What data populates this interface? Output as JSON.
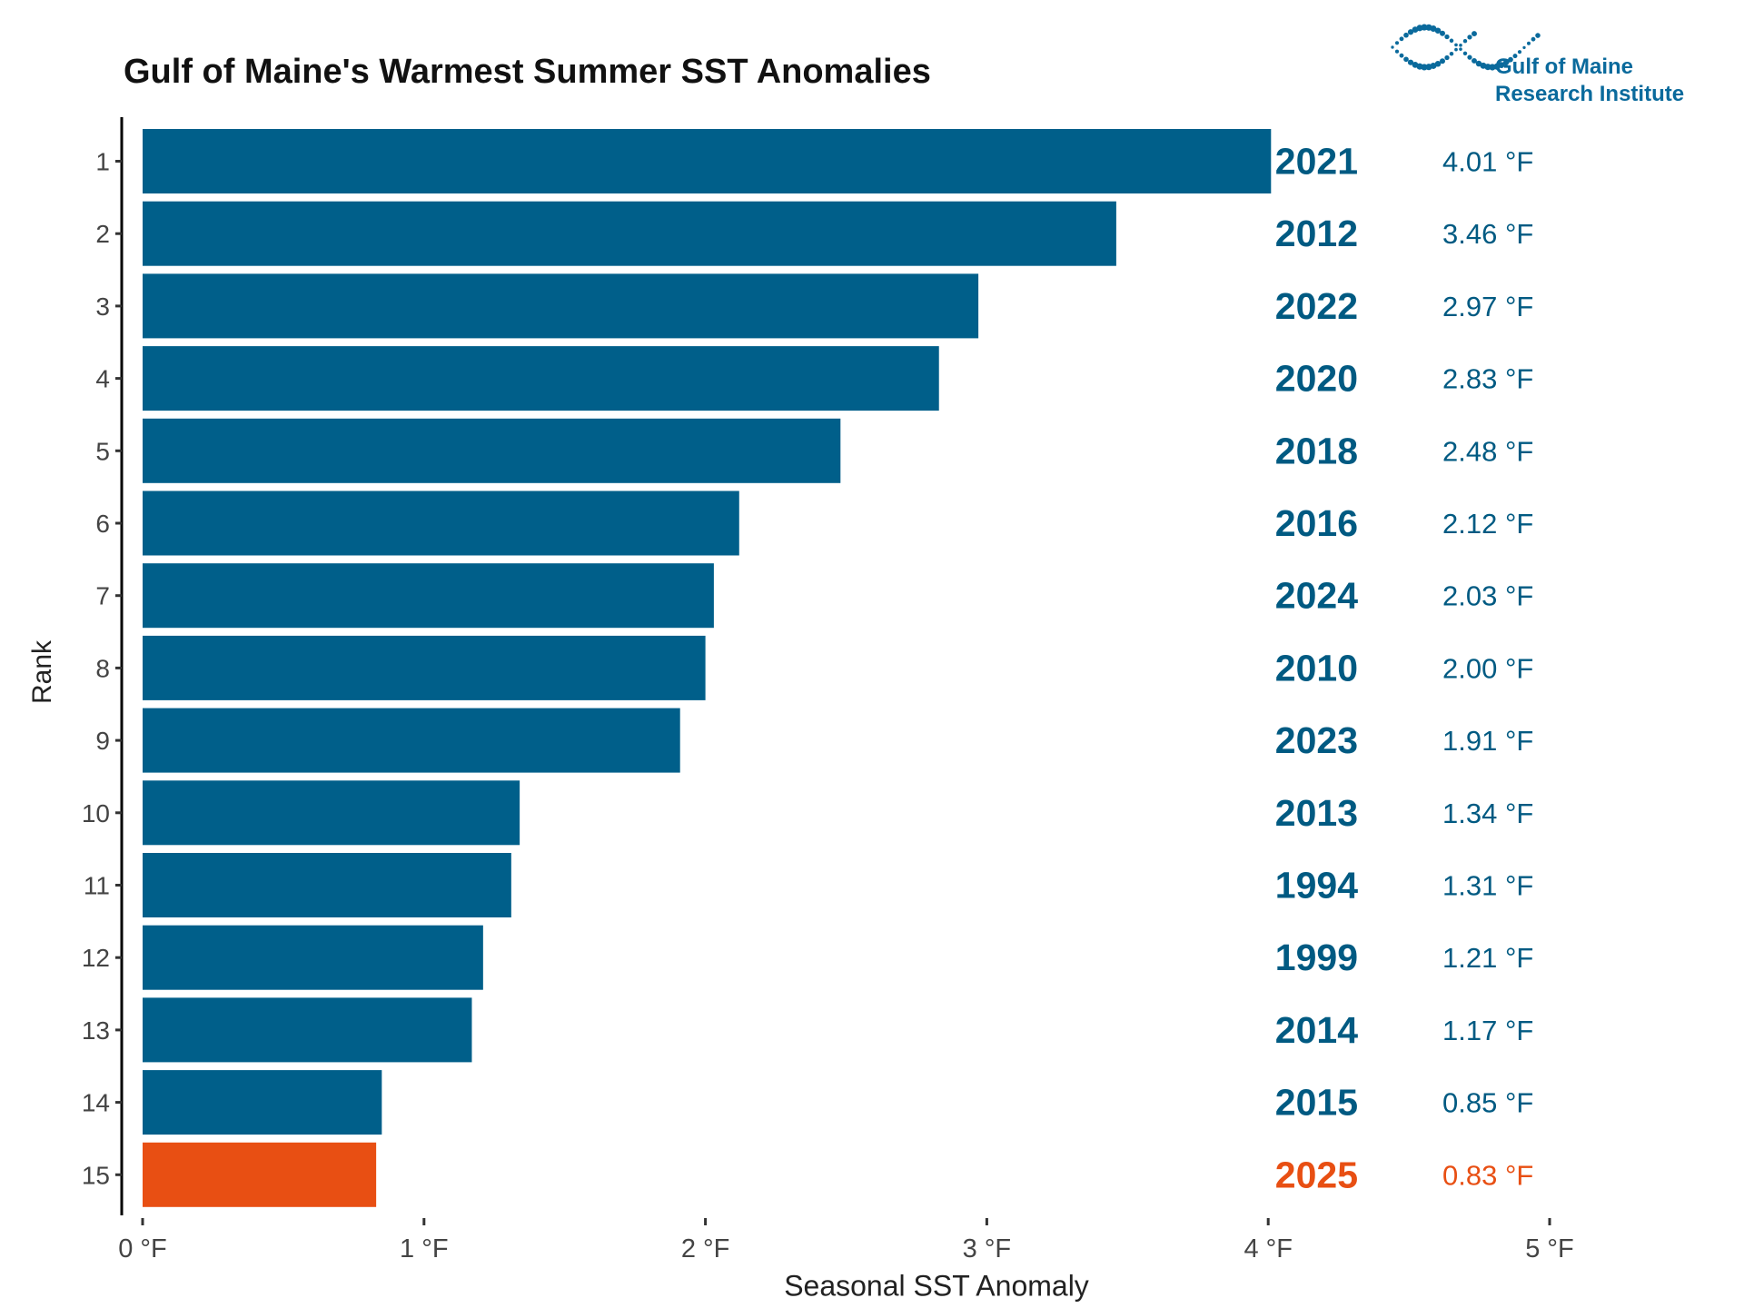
{
  "logo": {
    "line1": "Gulf of Maine",
    "line2": "Research Institute"
  },
  "chart_data": {
    "type": "bar",
    "orientation": "horizontal",
    "title": "Gulf of Maine's Warmest Summer SST Anomalies",
    "xlabel": "Seasonal SST Anomaly",
    "ylabel": "Rank",
    "xlim": [
      0,
      5
    ],
    "x_ticks": [
      "0 °F",
      "1 °F",
      "2 °F",
      "3 °F",
      "4 °F",
      "5 °F"
    ],
    "categories": [
      "1",
      "2",
      "3",
      "4",
      "5",
      "6",
      "7",
      "8",
      "9",
      "10",
      "11",
      "12",
      "13",
      "14",
      "15"
    ],
    "years": [
      "2021",
      "2012",
      "2022",
      "2020",
      "2018",
      "2016",
      "2024",
      "2010",
      "2023",
      "2013",
      "1994",
      "1999",
      "2014",
      "2015",
      "2025"
    ],
    "values": [
      4.01,
      3.46,
      2.97,
      2.83,
      2.48,
      2.12,
      2.03,
      2.0,
      1.91,
      1.34,
      1.31,
      1.21,
      1.17,
      0.85,
      0.83
    ],
    "value_labels": [
      "4.01 °F",
      "3.46 °F",
      "2.97 °F",
      "2.83 °F",
      "2.48 °F",
      "2.12 °F",
      "2.03 °F",
      "2.00 °F",
      "1.91 °F",
      "1.34 °F",
      "1.31 °F",
      "1.21 °F",
      "1.17 °F",
      "0.85 °F",
      "0.83 °F"
    ],
    "highlight_year": "2025",
    "colors": {
      "default": "#005f8a",
      "highlight": "#e84f13",
      "label": "#005a82"
    },
    "grid": false
  }
}
